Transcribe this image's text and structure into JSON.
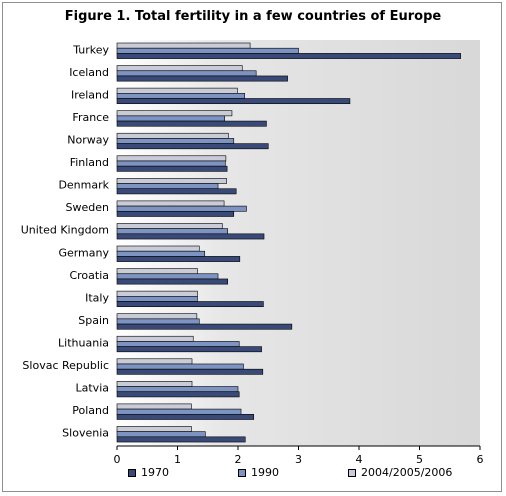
{
  "chart_data": {
    "type": "bar",
    "orientation": "horizontal",
    "title": "Figure 1. Total fertility in a few countries of Europe",
    "categories": [
      "Turkey",
      "Iceland",
      "Ireland",
      "France",
      "Norway",
      "Finland",
      "Denmark",
      "Sweden",
      "United Kingdom",
      "Germany",
      "Croatia",
      "Italy",
      "Spain",
      "Lithuania",
      "Slovac Republic",
      "Latvia",
      "Poland",
      "Slovenia"
    ],
    "series": [
      {
        "name": "1970",
        "color": "#3a4a78",
        "values": [
          5.68,
          2.82,
          3.85,
          2.47,
          2.5,
          1.82,
          1.97,
          1.93,
          2.43,
          2.03,
          1.83,
          2.42,
          2.89,
          2.39,
          2.41,
          2.02,
          2.26,
          2.12
        ]
      },
      {
        "name": "1990",
        "color": "#7d93c2",
        "values": [
          3.0,
          2.3,
          2.11,
          1.78,
          1.93,
          1.79,
          1.67,
          2.14,
          1.83,
          1.45,
          1.67,
          1.33,
          1.36,
          2.02,
          2.09,
          2.0,
          2.05,
          1.46
        ]
      },
      {
        "name": "2004/2005/2006",
        "color": "#c9cbd6",
        "values": [
          2.2,
          2.07,
          1.99,
          1.9,
          1.84,
          1.8,
          1.81,
          1.77,
          1.74,
          1.36,
          1.33,
          1.33,
          1.32,
          1.26,
          1.24,
          1.24,
          1.23,
          1.23
        ]
      }
    ],
    "xlim": [
      0,
      6
    ],
    "xticks": [
      "0",
      "1",
      "2",
      "3",
      "4",
      "5",
      "6"
    ],
    "grid": false,
    "legend_position": "bottom",
    "plot_background": [
      "#ffffff",
      "#dcdcdc"
    ]
  }
}
